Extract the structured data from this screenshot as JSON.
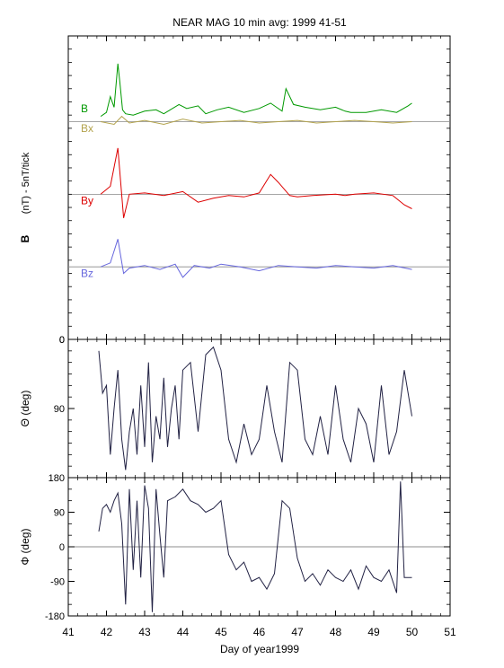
{
  "chart_data": {
    "type": "line",
    "title": "NEAR MAG 10 min avg: 1999 41-51",
    "xlabel": "Day of year1999",
    "xlim": [
      41,
      51
    ],
    "xticks": [
      "41",
      "42",
      "43",
      "44",
      "45",
      "46",
      "47",
      "48",
      "49",
      "50",
      "51"
    ],
    "panels": [
      {
        "id": "b",
        "ylabel_bold": "B",
        "ylabel_rest": "(nT) - 5nT/tick",
        "yticks": [
          "0"
        ],
        "ylim": [
          0,
          23
        ],
        "series": [
          {
            "name": "B",
            "color": "#009900",
            "baseline": 16.8,
            "x": [
              41.85,
              42.0,
              42.1,
              42.2,
              42.3,
              42.35,
              42.42,
              42.5,
              42.7,
              43.0,
              43.3,
              43.5,
              43.9,
              44.1,
              44.4,
              44.6,
              44.9,
              45.2,
              45.6,
              46.0,
              46.3,
              46.6,
              46.7,
              46.9,
              47.2,
              47.6,
              48.0,
              48.25,
              48.4,
              48.8,
              49.2,
              49.6,
              49.9,
              50.0
            ],
            "y": [
              16.9,
              17.2,
              18.4,
              17.6,
              20.9,
              19.5,
              17.4,
              17.1,
              17.0,
              17.3,
              17.4,
              17.1,
              17.8,
              17.5,
              17.7,
              17.1,
              17.4,
              17.6,
              17.2,
              17.5,
              17.9,
              17.3,
              19.0,
              17.8,
              17.6,
              17.4,
              17.6,
              17.3,
              17.2,
              17.2,
              17.4,
              17.2,
              17.7,
              17.9
            ]
          },
          {
            "name": "Bx",
            "color": "#b3a34d",
            "baseline": 16.5,
            "x": [
              41.85,
              42.2,
              42.4,
              42.6,
              43.0,
              43.5,
              44.0,
              44.5,
              45.0,
              45.5,
              46.0,
              46.5,
              47.0,
              47.5,
              48.0,
              48.5,
              49.0,
              49.5,
              50.0
            ],
            "y": [
              16.5,
              16.3,
              16.9,
              16.4,
              16.6,
              16.3,
              16.7,
              16.4,
              16.5,
              16.6,
              16.4,
              16.5,
              16.6,
              16.4,
              16.5,
              16.6,
              16.5,
              16.4,
              16.5
            ]
          },
          {
            "name": "By",
            "color": "#dd0000",
            "baseline": 11.0,
            "x": [
              41.85,
              42.1,
              42.3,
              42.45,
              42.6,
              43.0,
              43.5,
              44.0,
              44.4,
              44.8,
              45.2,
              45.6,
              46.0,
              46.3,
              46.5,
              46.8,
              47.0,
              47.4,
              48.0,
              48.25,
              48.5,
              49.0,
              49.5,
              49.8,
              50.0
            ],
            "y": [
              11.0,
              11.6,
              14.5,
              9.2,
              11.0,
              11.1,
              10.9,
              11.2,
              10.4,
              10.7,
              10.9,
              10.8,
              11.1,
              12.5,
              11.9,
              10.9,
              10.8,
              10.9,
              11.0,
              10.9,
              11.0,
              11.1,
              10.9,
              10.2,
              9.9
            ]
          },
          {
            "name": "Bz",
            "color": "#6666dd",
            "baseline": 5.5,
            "x": [
              41.85,
              42.1,
              42.3,
              42.45,
              42.6,
              43.0,
              43.4,
              43.8,
              44.0,
              44.3,
              44.7,
              45.0,
              45.5,
              46.0,
              46.5,
              47.0,
              47.5,
              48.0,
              48.5,
              49.0,
              49.5,
              50.0
            ],
            "y": [
              5.5,
              5.8,
              7.6,
              5.0,
              5.4,
              5.6,
              5.3,
              5.7,
              4.7,
              5.6,
              5.4,
              5.7,
              5.5,
              5.2,
              5.6,
              5.5,
              5.4,
              5.6,
              5.5,
              5.4,
              5.6,
              5.3
            ]
          }
        ]
      },
      {
        "id": "theta",
        "ylabel": "Θ (deg)",
        "yticks": [
          "0",
          "90"
        ],
        "ylim": [
          0,
          180
        ],
        "series": [
          {
            "name": "",
            "color": "#222244",
            "x": [
              41.8,
              41.9,
              42.0,
              42.1,
              42.2,
              42.3,
              42.4,
              42.5,
              42.6,
              42.7,
              42.8,
              42.9,
              43.0,
              43.1,
              43.2,
              43.3,
              43.4,
              43.5,
              43.6,
              43.7,
              43.8,
              43.9,
              44.0,
              44.2,
              44.4,
              44.6,
              44.8,
              45.0,
              45.2,
              45.4,
              45.6,
              45.8,
              46.0,
              46.2,
              46.4,
              46.6,
              46.8,
              47.0,
              47.2,
              47.4,
              47.6,
              47.8,
              48.0,
              48.2,
              48.4,
              48.6,
              48.8,
              49.0,
              49.2,
              49.4,
              49.6,
              49.8,
              50.0
            ],
            "y": [
              15,
              70,
              60,
              150,
              90,
              40,
              130,
              170,
              120,
              90,
              150,
              60,
              140,
              30,
              160,
              100,
              130,
              50,
              140,
              90,
              60,
              130,
              40,
              30,
              120,
              20,
              10,
              40,
              130,
              160,
              110,
              150,
              130,
              60,
              120,
              160,
              30,
              40,
              130,
              150,
              100,
              150,
              60,
              130,
              160,
              90,
              110,
              160,
              60,
              150,
              120,
              40,
              100
            ]
          }
        ]
      },
      {
        "id": "phi",
        "ylabel": "Φ (deg)",
        "yticks": [
          "-180",
          "-90",
          "0",
          "90",
          "180"
        ],
        "ylim": [
          -180,
          180
        ],
        "series": [
          {
            "name": "",
            "color": "#222244",
            "x": [
              41.8,
              41.9,
              42.0,
              42.1,
              42.2,
              42.3,
              42.4,
              42.5,
              42.6,
              42.7,
              42.8,
              42.9,
              43.0,
              43.1,
              43.2,
              43.3,
              43.4,
              43.5,
              43.6,
              43.8,
              44.0,
              44.2,
              44.4,
              44.6,
              44.8,
              45.0,
              45.2,
              45.4,
              45.6,
              45.8,
              46.0,
              46.2,
              46.4,
              46.6,
              46.8,
              47.0,
              47.2,
              47.4,
              47.6,
              47.8,
              48.0,
              48.2,
              48.4,
              48.6,
              48.8,
              49.0,
              49.2,
              49.4,
              49.6,
              49.7,
              49.8,
              50.0
            ],
            "y": [
              40,
              100,
              110,
              90,
              120,
              140,
              60,
              -150,
              150,
              -60,
              120,
              -80,
              160,
              100,
              -170,
              150,
              30,
              -80,
              120,
              130,
              150,
              120,
              110,
              90,
              100,
              120,
              -20,
              -60,
              -40,
              -90,
              -80,
              -110,
              -70,
              120,
              100,
              -30,
              -90,
              -70,
              -100,
              -60,
              -80,
              -90,
              -60,
              -110,
              -50,
              -80,
              -90,
              -60,
              -120,
              170,
              -80,
              -80
            ]
          }
        ]
      }
    ]
  }
}
